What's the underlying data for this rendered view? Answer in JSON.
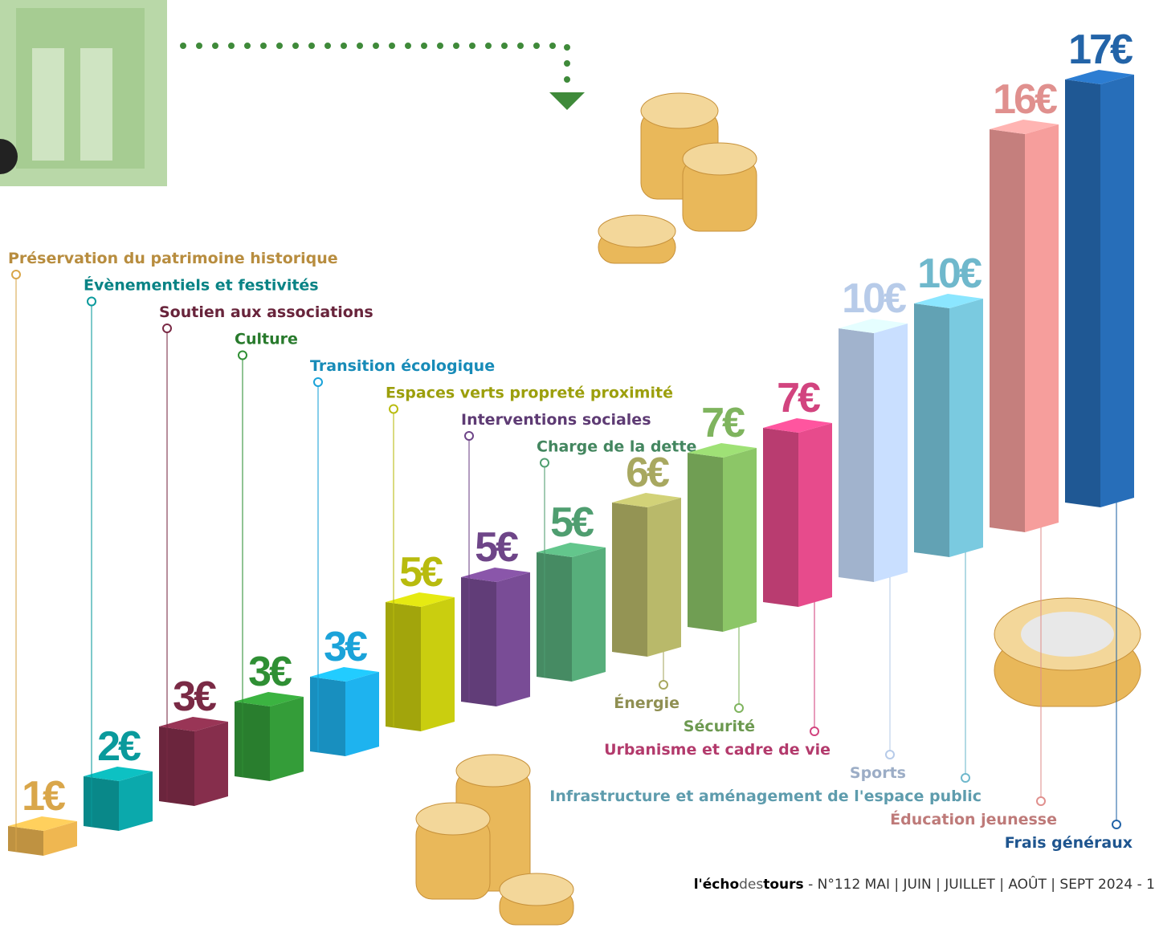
{
  "chart_data": {
    "type": "bar3d",
    "categories": [
      "Préservation du patrimoine historique",
      "Évènementiels et festivités",
      "Soutien aux associations",
      "Culture",
      "Transition écologique",
      "Espaces verts propreté proximité",
      "Interventions sociales",
      "Charge de la dette",
      "Énergie",
      "Sécurité",
      "Urbanisme et cadre de vie",
      "Sports",
      "Infrastructure et aménagement de l'espace public",
      "Éducation jeunesse",
      "Frais généraux"
    ],
    "values": [
      1,
      2,
      3,
      3,
      3,
      5,
      5,
      5,
      6,
      7,
      7,
      10,
      10,
      16,
      17
    ],
    "value_labels": [
      "1€",
      "2€",
      "3€",
      "3€",
      "3€",
      "5€",
      "5€",
      "5€",
      "6€",
      "7€",
      "7€",
      "10€",
      "10€",
      "16€",
      "17€"
    ],
    "colors": [
      "#d9a64a",
      "#0a9a9c",
      "#7a2a45",
      "#2f8f34",
      "#1ba3d9",
      "#b8bb0e",
      "#6e4588",
      "#4f9e70",
      "#a8a860",
      "#7fb45e",
      "#d2447f",
      "#b7cbe9",
      "#6fb8cc",
      "#e0908e",
      "#2364a8"
    ]
  },
  "footer": {
    "brand_a": "l'écho",
    "brand_b": "des",
    "brand_c": "tours",
    "issue": " - N°112  MAI | JUIN | JUILLET | AOÛT | SEPT 2024 - 1"
  }
}
